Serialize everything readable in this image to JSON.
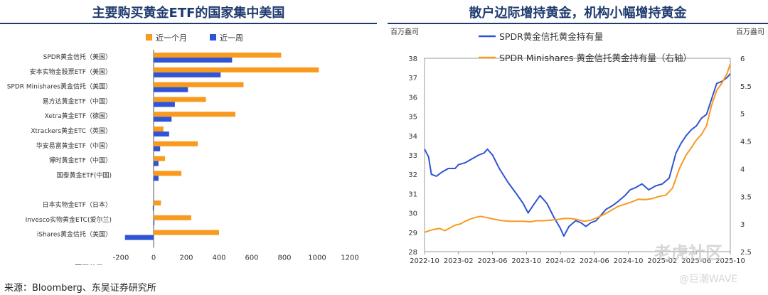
{
  "left_title": "主要购买黄金ETF的国家集中美国",
  "right_title": "散户边际增持黄金，机构小幅增持黄金",
  "source": "来源：Bloomberg、东吴证券研究所",
  "watermark": "老虎社区",
  "watermark_handle": "@巨潮WAVE",
  "colors": {
    "orange": "#f79a1e",
    "blue": "#2f55d4",
    "title": "#1f3b6e",
    "axis": "#888888"
  },
  "chart_data": [
    {
      "type": "bar",
      "orientation": "horizontal",
      "categories": [
        "SPDR黄金信托（美国）",
        "安本实物金股票ETF（美国）",
        "SPDR Minishares黄金信托（美国）",
        "易方达黄金ETF（中国）",
        "Xetra黄金ETF（德国）",
        "Xtrackers黄金ETC（英国）",
        "华安易富黄金ETF（中国）",
        "博时黄金ETF（中国）",
        "国泰黄金ETF(中国)",
        "",
        "日本实物金ETF（日本）",
        "Invesco实物黄金ETC(爱尔兰)",
        "iShares黄金信托（美国）"
      ],
      "series": [
        {
          "name": "近一个月",
          "color": "#f79a1e",
          "values": [
            780,
            1010,
            550,
            320,
            500,
            60,
            270,
            70,
            170,
            null,
            45,
            230,
            400
          ]
        },
        {
          "name": "近一周",
          "color": "#2f55d4",
          "values": [
            480,
            410,
            210,
            130,
            110,
            95,
            40,
            30,
            30,
            null,
            -5,
            5,
            -175
          ]
        }
      ],
      "xlim": [
        -200,
        1200
      ],
      "xticks": [
        -200,
        0,
        200,
        400,
        600,
        800,
        1000,
        1200
      ],
      "xlabel": "百万美元",
      "legend": "top"
    },
    {
      "type": "line",
      "x_ticks": [
        "2022-10",
        "2023-02",
        "2023-06",
        "2023-10",
        "2024-02",
        "2024-06",
        "2024-10",
        "2025-02",
        "2025-06",
        "2025-10"
      ],
      "left_axis": {
        "label": "百万盎司",
        "range": [
          28,
          38
        ],
        "ticks": [
          28,
          29,
          30,
          31,
          32,
          33,
          34,
          35,
          36,
          37,
          38
        ]
      },
      "right_axis": {
        "label": "百万盎司",
        "range": [
          2.5,
          6
        ],
        "ticks": [
          "2.5",
          "3",
          "3.5",
          "4",
          "4.5",
          "5",
          "5.5",
          "6"
        ]
      },
      "series": [
        {
          "name": "SPDR黄金信托黄金持有量",
          "color": "#2f55d4",
          "axis": "left",
          "points": [
            [
              0,
              33.3
            ],
            [
              0.12,
              32.9
            ],
            [
              0.2,
              32.0
            ],
            [
              0.35,
              31.9
            ],
            [
              0.5,
              32.1
            ],
            [
              0.7,
              32.3
            ],
            [
              0.9,
              32.3
            ],
            [
              1.0,
              32.5
            ],
            [
              1.2,
              32.6
            ],
            [
              1.4,
              32.8
            ],
            [
              1.6,
              33.0
            ],
            [
              1.75,
              33.1
            ],
            [
              1.85,
              33.3
            ],
            [
              2.0,
              33.0
            ],
            [
              2.2,
              32.3
            ],
            [
              2.45,
              31.6
            ],
            [
              2.7,
              31.0
            ],
            [
              2.9,
              30.5
            ],
            [
              3.05,
              30.0
            ],
            [
              3.2,
              30.4
            ],
            [
              3.4,
              30.9
            ],
            [
              3.6,
              30.5
            ],
            [
              3.8,
              29.8
            ],
            [
              4.0,
              29.2
            ],
            [
              4.1,
              28.8
            ],
            [
              4.25,
              29.3
            ],
            [
              4.45,
              29.6
            ],
            [
              4.6,
              29.5
            ],
            [
              4.75,
              29.3
            ],
            [
              4.9,
              29.5
            ],
            [
              5.05,
              29.6
            ],
            [
              5.2,
              29.9
            ],
            [
              5.35,
              30.2
            ],
            [
              5.55,
              30.4
            ],
            [
              5.7,
              30.6
            ],
            [
              5.9,
              30.9
            ],
            [
              6.05,
              31.2
            ],
            [
              6.2,
              31.3
            ],
            [
              6.4,
              31.5
            ],
            [
              6.6,
              31.2
            ],
            [
              6.8,
              31.4
            ],
            [
              7.0,
              31.5
            ],
            [
              7.2,
              31.8
            ],
            [
              7.4,
              33.1
            ],
            [
              7.55,
              33.6
            ],
            [
              7.7,
              34.0
            ],
            [
              7.85,
              34.3
            ],
            [
              8.0,
              34.5
            ],
            [
              8.15,
              34.9
            ],
            [
              8.3,
              35.1
            ],
            [
              8.45,
              35.9
            ],
            [
              8.6,
              36.7
            ],
            [
              8.75,
              36.8
            ],
            [
              8.9,
              37.0
            ],
            [
              9.0,
              37.2
            ]
          ]
        },
        {
          "name": "SPDR Minishares 黄金信托黄金持有量（右轴）",
          "color": "#f79a1e",
          "axis": "right",
          "points": [
            [
              0,
              2.85
            ],
            [
              0.1,
              2.87
            ],
            [
              0.25,
              2.9
            ],
            [
              0.45,
              2.92
            ],
            [
              0.6,
              2.88
            ],
            [
              0.75,
              2.93
            ],
            [
              0.9,
              2.98
            ],
            [
              1.05,
              3.0
            ],
            [
              1.2,
              3.05
            ],
            [
              1.35,
              3.09
            ],
            [
              1.5,
              3.12
            ],
            [
              1.65,
              3.14
            ],
            [
              1.8,
              3.12
            ],
            [
              1.95,
              3.1
            ],
            [
              2.1,
              3.08
            ],
            [
              2.3,
              3.06
            ],
            [
              2.5,
              3.05
            ],
            [
              2.7,
              3.05
            ],
            [
              2.9,
              3.05
            ],
            [
              3.1,
              3.04
            ],
            [
              3.3,
              3.06
            ],
            [
              3.5,
              3.06
            ],
            [
              3.7,
              3.07
            ],
            [
              3.9,
              3.08
            ],
            [
              4.1,
              3.1
            ],
            [
              4.3,
              3.1
            ],
            [
              4.5,
              3.08
            ],
            [
              4.7,
              3.05
            ],
            [
              4.9,
              3.07
            ],
            [
              5.1,
              3.12
            ],
            [
              5.3,
              3.18
            ],
            [
              5.5,
              3.25
            ],
            [
              5.7,
              3.32
            ],
            [
              5.9,
              3.36
            ],
            [
              6.1,
              3.4
            ],
            [
              6.3,
              3.45
            ],
            [
              6.5,
              3.44
            ],
            [
              6.7,
              3.46
            ],
            [
              6.9,
              3.5
            ],
            [
              7.1,
              3.52
            ],
            [
              7.3,
              3.65
            ],
            [
              7.5,
              4.0
            ],
            [
              7.7,
              4.25
            ],
            [
              7.85,
              4.38
            ],
            [
              8.0,
              4.52
            ],
            [
              8.15,
              4.62
            ],
            [
              8.3,
              4.78
            ],
            [
              8.45,
              5.15
            ],
            [
              8.6,
              5.42
            ],
            [
              8.75,
              5.55
            ],
            [
              8.9,
              5.72
            ],
            [
              9.0,
              5.9
            ]
          ]
        }
      ],
      "legend": "top"
    }
  ]
}
